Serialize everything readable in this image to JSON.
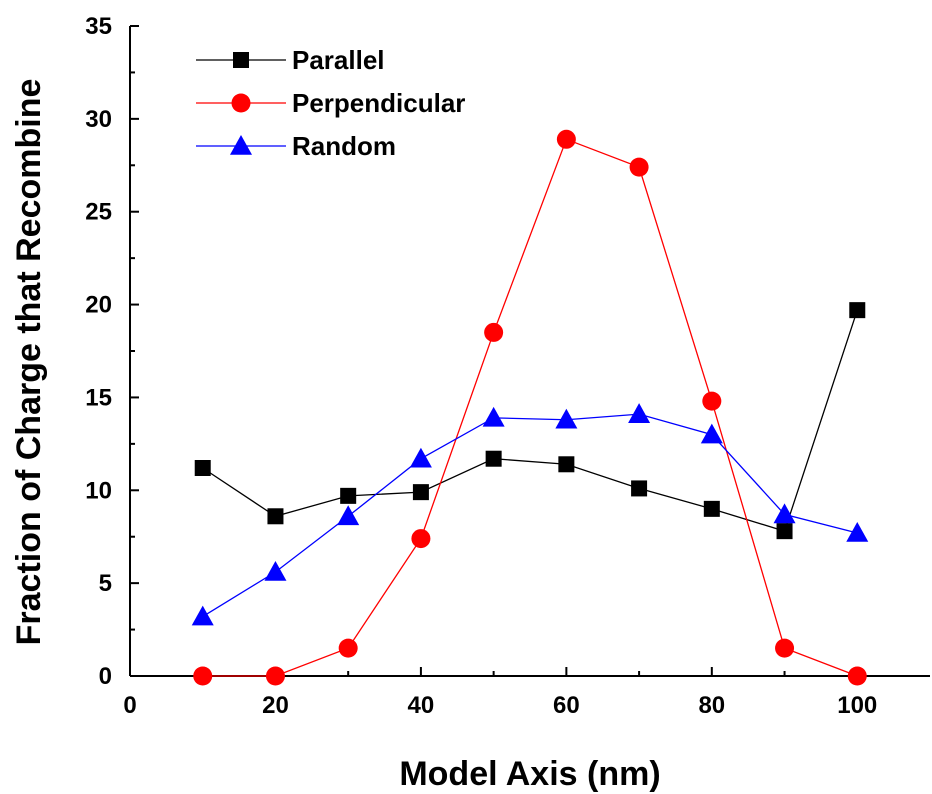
{
  "chart_data": {
    "type": "line",
    "title": "",
    "xlabel": "Model Axis (nm)",
    "ylabel": "Fraction of Charge that Recombine",
    "xlim": [
      0,
      110
    ],
    "ylim": [
      0,
      35
    ],
    "xticks": [
      0,
      20,
      40,
      60,
      80,
      100
    ],
    "yticks": [
      0,
      5,
      10,
      15,
      20,
      25,
      30,
      35
    ],
    "grid": false,
    "legend_position": "top-left",
    "x": [
      10,
      20,
      30,
      40,
      50,
      60,
      70,
      80,
      90,
      100
    ],
    "series": [
      {
        "name": "Parallel",
        "color": "#000000",
        "marker": "square",
        "values": [
          11.2,
          8.6,
          9.7,
          9.9,
          11.7,
          11.4,
          10.1,
          9.0,
          7.8,
          19.7
        ]
      },
      {
        "name": "Perpendicular",
        "color": "#ff0000",
        "marker": "circle",
        "values": [
          0.0,
          0.0,
          1.5,
          7.4,
          18.5,
          28.9,
          27.4,
          14.8,
          1.5,
          0.0
        ]
      },
      {
        "name": "Random",
        "color": "#0000ff",
        "marker": "triangle",
        "values": [
          3.2,
          5.6,
          8.6,
          11.7,
          13.9,
          13.8,
          14.1,
          13.0,
          8.7,
          7.7
        ]
      }
    ]
  }
}
